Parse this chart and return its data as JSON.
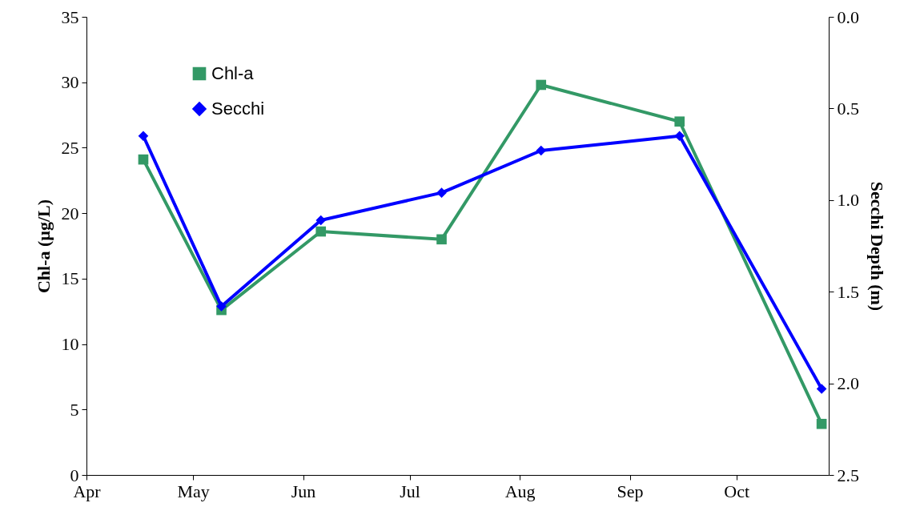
{
  "chart_data": {
    "type": "line",
    "ylabel": "Chl-a (µg/L)",
    "y2label": "Secchi Depth (m)",
    "x": [
      "--04-17",
      "--05-09",
      "--06-06",
      "--07-10",
      "--08-07",
      "--09-15",
      "--10-25"
    ],
    "series": [
      {
        "name": "Chl-a",
        "color": "#339966",
        "marker": "square",
        "values": [
          24.1,
          12.6,
          18.6,
          18.0,
          29.8,
          27.0,
          3.9
        ]
      },
      {
        "name": "Secchi",
        "color": "#0000ff",
        "marker": "diamond",
        "axis": "y2",
        "values": [
          0.65,
          1.58,
          1.11,
          0.96,
          0.73,
          0.65,
          2.03
        ]
      }
    ],
    "xlim": [
      "--04-01",
      "--10-27"
    ],
    "xticks": [
      {
        "value": "--04-01",
        "label": "Apr"
      },
      {
        "value": "--05-01",
        "label": "May"
      },
      {
        "value": "--06-01",
        "label": "Jun"
      },
      {
        "value": "--07-01",
        "label": "Jul"
      },
      {
        "value": "--08-01",
        "label": "Aug"
      },
      {
        "value": "--09-01",
        "label": "Sep"
      },
      {
        "value": "--10-01",
        "label": "Oct"
      }
    ],
    "ylim": [
      0,
      35
    ],
    "yticks": [
      0,
      5,
      10,
      15,
      20,
      25,
      30,
      35
    ],
    "y2lim": [
      2.5,
      0
    ],
    "y2ticks": [
      {
        "value": 0,
        "label": "0.0"
      },
      0.5,
      {
        "value": 1,
        "label": "1.0"
      },
      1.5,
      {
        "value": 2,
        "label": "2.0"
      },
      2.5
    ],
    "grid": false,
    "legend": "top left",
    "line_style": "solid"
  }
}
